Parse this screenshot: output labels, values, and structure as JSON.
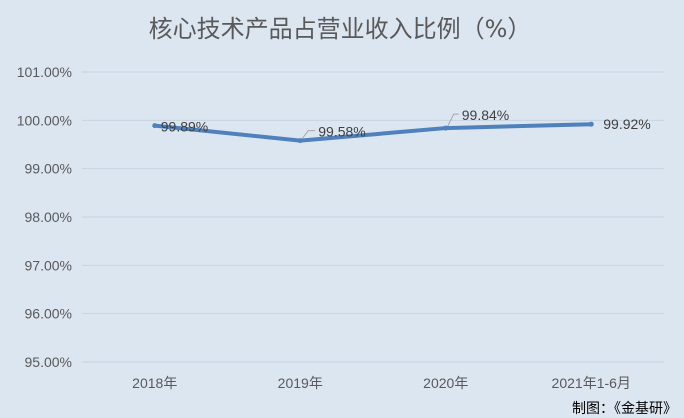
{
  "chart_data": {
    "type": "line",
    "title": "核心技术产品占营业收入比例（%）",
    "categories": [
      "2018年",
      "2019年",
      "2020年",
      "2021年1-6月"
    ],
    "series": [
      {
        "values": [
          99.89,
          99.58,
          99.84,
          99.92
        ],
        "labels": [
          "99.89%",
          "99.58%",
          "99.84%",
          "99.92%"
        ],
        "color": "#4f81bd"
      }
    ],
    "ylim": [
      95,
      101
    ],
    "yticks": [
      95,
      96,
      97,
      98,
      99,
      100,
      101
    ],
    "ytick_labels": [
      "95.00%",
      "96.00%",
      "97.00%",
      "98.00%",
      "99.00%",
      "100.00%",
      "101.00%"
    ],
    "grid": true,
    "xlabel": "",
    "ylabel": ""
  },
  "credit": "制图：《金基研》",
  "colors": {
    "background": "#dce6f1",
    "grid": "#c8d3e0",
    "text": "#595959",
    "leader": "#a6a6a6"
  }
}
